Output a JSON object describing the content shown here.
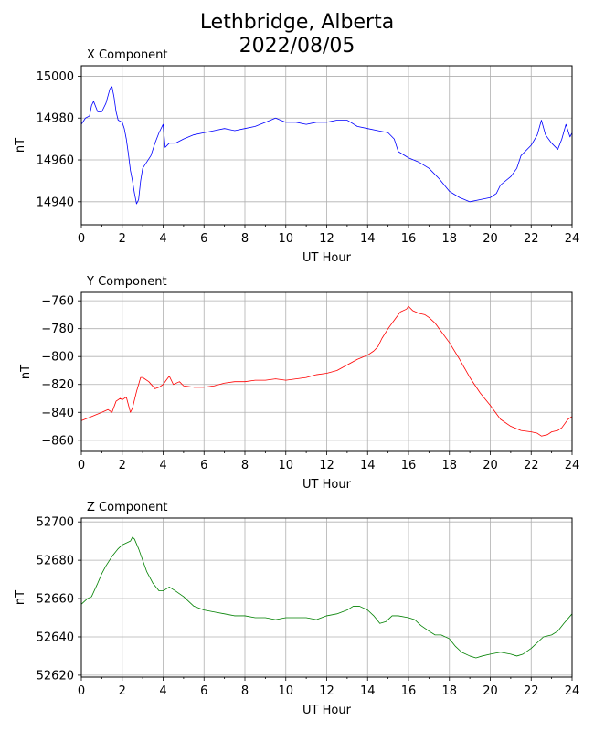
{
  "title_line1": "Lethbridge, Alberta",
  "title_line2": "2022/08/05",
  "chart_data": [
    {
      "type": "line",
      "title": "X Component",
      "xlabel": "UT Hour",
      "ylabel": "nT",
      "xlim": [
        0,
        24
      ],
      "ylim": [
        14929,
        15005
      ],
      "xticks": [
        0,
        2,
        4,
        6,
        8,
        10,
        12,
        14,
        16,
        18,
        20,
        22,
        24
      ],
      "yticks": [
        14940,
        14960,
        14980,
        15000
      ],
      "grid": true,
      "series": [
        {
          "color": "#0000ff",
          "x": [
            0,
            0.2,
            0.4,
            0.5,
            0.6,
            0.8,
            1.0,
            1.2,
            1.4,
            1.5,
            1.6,
            1.7,
            1.8,
            2.0,
            2.1,
            2.2,
            2.3,
            2.4,
            2.5,
            2.6,
            2.7,
            2.8,
            2.9,
            3.0,
            3.2,
            3.4,
            3.6,
            3.8,
            4.0,
            4.1,
            4.3,
            4.6,
            5.0,
            5.5,
            6.0,
            6.5,
            7.0,
            7.5,
            8.0,
            8.5,
            9.0,
            9.5,
            10.0,
            10.5,
            11.0,
            11.5,
            12.0,
            12.5,
            13.0,
            13.5,
            14.0,
            14.5,
            15.0,
            15.3,
            15.5,
            16.0,
            16.5,
            17.0,
            17.5,
            18.0,
            18.5,
            19.0,
            19.5,
            20.0,
            20.3,
            20.5,
            21.0,
            21.3,
            21.5,
            22.0,
            22.3,
            22.5,
            22.7,
            23.0,
            23.3,
            23.5,
            23.7,
            23.9,
            24.0
          ],
          "y": [
            14977,
            14980,
            14981,
            14986,
            14988,
            14983,
            14983,
            14987,
            14994,
            14995,
            14990,
            14983,
            14979,
            14978,
            14975,
            14970,
            14963,
            14955,
            14950,
            14944,
            14939,
            14941,
            14950,
            14956,
            14959,
            14962,
            14968,
            14973,
            14977,
            14966,
            14968,
            14968,
            14970,
            14972,
            14973,
            14974,
            14975,
            14974,
            14975,
            14976,
            14978,
            14980,
            14978,
            14978,
            14977,
            14978,
            14978,
            14979,
            14979,
            14976,
            14975,
            14974,
            14973,
            14970,
            14964,
            14961,
            14959,
            14956,
            14951,
            14945,
            14942,
            14940,
            14941,
            14942,
            14944,
            14948,
            14952,
            14956,
            14962,
            14967,
            14972,
            14979,
            14972,
            14968,
            14965,
            14970,
            14977,
            14971,
            14973
          ]
        }
      ]
    },
    {
      "type": "line",
      "title": "Y Component",
      "xlabel": "UT Hour",
      "ylabel": "nT",
      "xlim": [
        0,
        24
      ],
      "ylim": [
        -868,
        -754
      ],
      "xticks": [
        0,
        2,
        4,
        6,
        8,
        10,
        12,
        14,
        16,
        18,
        20,
        22,
        24
      ],
      "yticks": [
        -860,
        -840,
        -820,
        -800,
        -780,
        -760
      ],
      "grid": true,
      "series": [
        {
          "color": "#ff0000",
          "x": [
            0,
            0.5,
            1.0,
            1.3,
            1.5,
            1.7,
            1.9,
            2.0,
            2.2,
            2.4,
            2.5,
            2.7,
            2.9,
            3.0,
            3.3,
            3.6,
            3.8,
            4.0,
            4.3,
            4.5,
            4.8,
            5.0,
            5.5,
            6.0,
            6.5,
            7.0,
            7.5,
            8.0,
            8.5,
            9.0,
            9.5,
            10.0,
            10.5,
            11.0,
            11.5,
            12.0,
            12.5,
            13.0,
            13.5,
            14.0,
            14.3,
            14.5,
            14.7,
            15.0,
            15.3,
            15.6,
            15.9,
            16.0,
            16.2,
            16.5,
            16.8,
            17.0,
            17.3,
            17.6,
            18.0,
            18.5,
            19.0,
            19.5,
            20.0,
            20.5,
            21.0,
            21.5,
            22.0,
            22.3,
            22.5,
            22.8,
            23.0,
            23.3,
            23.5,
            23.8,
            24.0
          ],
          "y": [
            -846,
            -843,
            -840,
            -838,
            -840,
            -832,
            -830,
            -831,
            -829,
            -840,
            -837,
            -825,
            -815,
            -815,
            -818,
            -823,
            -822,
            -820,
            -814,
            -820,
            -818,
            -821,
            -822,
            -822,
            -821,
            -819,
            -818,
            -818,
            -817,
            -817,
            -816,
            -817,
            -816,
            -815,
            -813,
            -812,
            -810,
            -806,
            -802,
            -799,
            -796,
            -793,
            -787,
            -780,
            -774,
            -768,
            -766,
            -764,
            -767,
            -769,
            -770,
            -772,
            -776,
            -782,
            -790,
            -802,
            -815,
            -826,
            -835,
            -845,
            -850,
            -853,
            -854,
            -855,
            -857,
            -856,
            -854,
            -853,
            -851,
            -845,
            -843
          ]
        }
      ]
    },
    {
      "type": "line",
      "title": "Z Component",
      "xlabel": "UT Hour",
      "ylabel": "nT",
      "xlim": [
        0,
        24
      ],
      "ylim": [
        52619,
        52702
      ],
      "xticks": [
        0,
        2,
        4,
        6,
        8,
        10,
        12,
        14,
        16,
        18,
        20,
        22,
        24
      ],
      "yticks": [
        52620,
        52640,
        52660,
        52680,
        52700
      ],
      "grid": true,
      "series": [
        {
          "color": "#008000",
          "x": [
            0,
            0.3,
            0.5,
            0.8,
            1.0,
            1.2,
            1.5,
            1.8,
            2.0,
            2.2,
            2.4,
            2.5,
            2.6,
            2.8,
            3.0,
            3.2,
            3.5,
            3.8,
            4.0,
            4.3,
            4.6,
            5.0,
            5.5,
            6.0,
            6.5,
            7.0,
            7.5,
            8.0,
            8.5,
            9.0,
            9.5,
            10.0,
            10.5,
            11.0,
            11.5,
            12.0,
            12.5,
            13.0,
            13.3,
            13.6,
            14.0,
            14.3,
            14.6,
            14.9,
            15.2,
            15.5,
            16.0,
            16.3,
            16.6,
            17.0,
            17.3,
            17.6,
            18.0,
            18.3,
            18.6,
            19.0,
            19.3,
            19.6,
            20.0,
            20.5,
            21.0,
            21.3,
            21.6,
            22.0,
            22.3,
            22.6,
            23.0,
            23.3,
            23.6,
            24.0
          ],
          "y": [
            52657,
            52660,
            52661,
            52668,
            52673,
            52677,
            52682,
            52686,
            52688,
            52689,
            52690,
            52692,
            52691,
            52686,
            52680,
            52674,
            52668,
            52664,
            52664,
            52666,
            52664,
            52661,
            52656,
            52654,
            52653,
            52652,
            52651,
            52651,
            52650,
            52650,
            52649,
            52650,
            52650,
            52650,
            52649,
            52651,
            52652,
            52654,
            52656,
            52656,
            52654,
            52651,
            52647,
            52648,
            52651,
            52651,
            52650,
            52649,
            52646,
            52643,
            52641,
            52641,
            52639,
            52635,
            52632,
            52630,
            52629,
            52630,
            52631,
            52632,
            52631,
            52630,
            52631,
            52634,
            52637,
            52640,
            52641,
            52643,
            52647,
            52652
          ]
        }
      ]
    }
  ]
}
